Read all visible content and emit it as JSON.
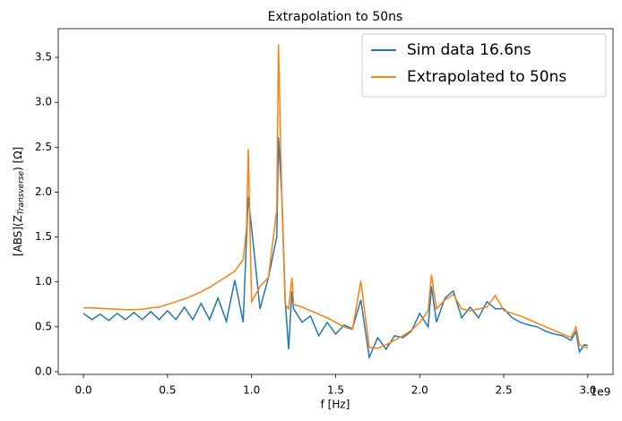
{
  "chart_data": {
    "type": "line",
    "title": "Extrapolation to 50ns",
    "xlabel": "f [Hz]",
    "x_offset_label": "1e9",
    "ylabel": {
      "main": "[ABS](Z",
      "sub": "Transverse",
      "tail": ") [Ω]"
    },
    "x": [
      0,
      0.05,
      0.1,
      0.15,
      0.2,
      0.25,
      0.3,
      0.35,
      0.4,
      0.45,
      0.5,
      0.55,
      0.6,
      0.65,
      0.7,
      0.75,
      0.8,
      0.85,
      0.9,
      0.95,
      0.97,
      0.98,
      1.0,
      1.05,
      1.1,
      1.15,
      1.16,
      1.18,
      1.2,
      1.22,
      1.24,
      1.25,
      1.3,
      1.35,
      1.4,
      1.45,
      1.5,
      1.55,
      1.6,
      1.65,
      1.7,
      1.75,
      1.8,
      1.85,
      1.9,
      1.95,
      2.0,
      2.05,
      2.07,
      2.1,
      2.15,
      2.2,
      2.25,
      2.3,
      2.35,
      2.4,
      2.45,
      2.5,
      2.55,
      2.6,
      2.65,
      2.7,
      2.75,
      2.8,
      2.85,
      2.9,
      2.93,
      2.95,
      2.98,
      3.0
    ],
    "series": [
      {
        "name": "Sim data 16.6ns",
        "color": "#1f77b4",
        "values": [
          0.65,
          0.58,
          0.64,
          0.57,
          0.65,
          0.58,
          0.66,
          0.58,
          0.67,
          0.58,
          0.68,
          0.58,
          0.72,
          0.58,
          0.76,
          0.58,
          0.82,
          0.56,
          1.02,
          0.55,
          1.5,
          1.95,
          1.6,
          0.7,
          1.05,
          1.5,
          2.61,
          1.95,
          0.8,
          0.25,
          0.9,
          0.7,
          0.55,
          0.62,
          0.4,
          0.55,
          0.42,
          0.52,
          0.48,
          0.8,
          0.16,
          0.38,
          0.25,
          0.4,
          0.38,
          0.45,
          0.65,
          0.5,
          0.95,
          0.55,
          0.82,
          0.9,
          0.6,
          0.72,
          0.6,
          0.78,
          0.7,
          0.7,
          0.6,
          0.55,
          0.52,
          0.5,
          0.45,
          0.42,
          0.4,
          0.35,
          0.45,
          0.22,
          0.3,
          0.29
        ]
      },
      {
        "name": "Extrapolated to 50ns",
        "color": "#ff7f0e",
        "values": [
          0.71,
          0.71,
          0.705,
          0.7,
          0.695,
          0.69,
          0.69,
          0.695,
          0.71,
          0.72,
          0.75,
          0.78,
          0.81,
          0.85,
          0.89,
          0.94,
          1.0,
          1.06,
          1.12,
          1.25,
          1.6,
          2.48,
          0.78,
          0.95,
          1.05,
          1.8,
          3.64,
          1.9,
          0.75,
          0.7,
          1.05,
          0.75,
          0.72,
          0.68,
          0.64,
          0.6,
          0.55,
          0.5,
          0.47,
          1.01,
          0.27,
          0.26,
          0.3,
          0.35,
          0.4,
          0.46,
          0.55,
          0.68,
          1.08,
          0.7,
          0.8,
          0.86,
          0.7,
          0.68,
          0.7,
          0.72,
          0.85,
          0.68,
          0.65,
          0.62,
          0.58,
          0.54,
          0.5,
          0.46,
          0.42,
          0.38,
          0.5,
          0.3,
          0.28,
          0.26
        ]
      }
    ],
    "xlim": [
      -0.15,
      3.15
    ],
    "ylim": [
      -0.03,
      3.82
    ],
    "xticks": [
      {
        "value": 0,
        "label": "0.0"
      },
      {
        "value": 0.5,
        "label": "0.5"
      },
      {
        "value": 1,
        "label": "1.0"
      },
      {
        "value": 1.5,
        "label": "1.5"
      },
      {
        "value": 2,
        "label": "2.0"
      },
      {
        "value": 2.5,
        "label": "2.5"
      },
      {
        "value": 3,
        "label": "3.0"
      }
    ],
    "yticks": [
      {
        "value": 0,
        "label": "0.0"
      },
      {
        "value": 0.5,
        "label": "0.5"
      },
      {
        "value": 1,
        "label": "1.0"
      },
      {
        "value": 1.5,
        "label": "1.5"
      },
      {
        "value": 2,
        "label": "2.0"
      },
      {
        "value": 2.5,
        "label": "2.5"
      },
      {
        "value": 3,
        "label": "3.0"
      },
      {
        "value": 3.5,
        "label": "3.5"
      }
    ],
    "legend": "upper right",
    "grid": false
  }
}
